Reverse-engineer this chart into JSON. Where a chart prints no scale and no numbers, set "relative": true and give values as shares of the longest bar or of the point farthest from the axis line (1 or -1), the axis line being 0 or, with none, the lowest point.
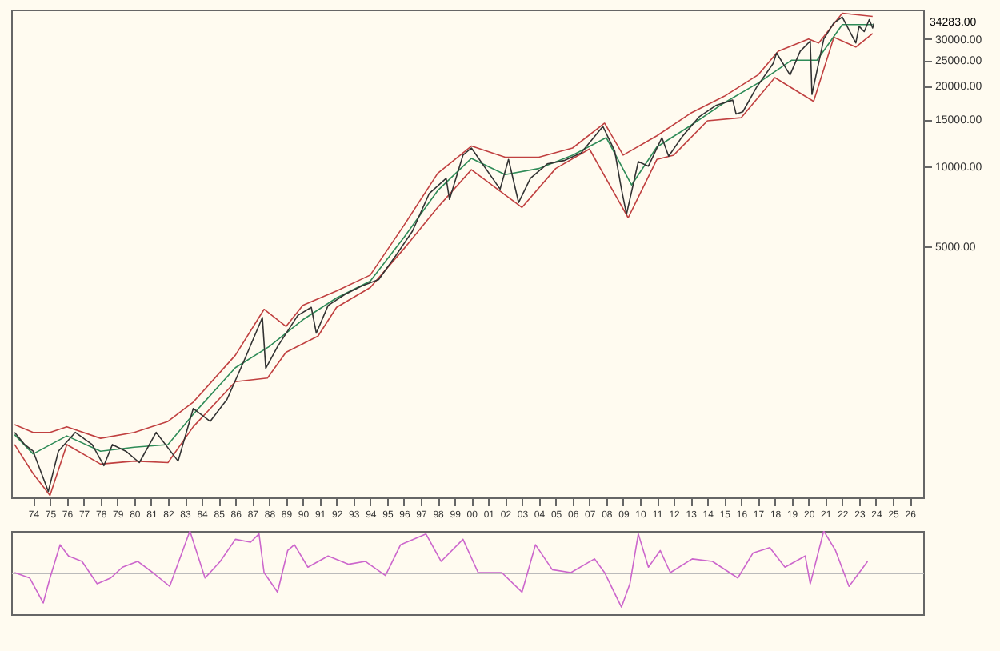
{
  "chart_data": [
    {
      "type": "line",
      "log": "y",
      "xlim": [
        1972.7,
        2026.8
      ],
      "ylim": [
        570,
        38700
      ],
      "xticks": [
        {
          "value": 1974,
          "label": "74"
        },
        {
          "value": 1975,
          "label": "75"
        },
        {
          "value": 1976,
          "label": "76"
        },
        {
          "value": 1977,
          "label": "77"
        },
        {
          "value": 1978,
          "label": "78"
        },
        {
          "value": 1979,
          "label": "79"
        },
        {
          "value": 1980,
          "label": "80"
        },
        {
          "value": 1981,
          "label": "81"
        },
        {
          "value": 1982,
          "label": "82"
        },
        {
          "value": 1983,
          "label": "83"
        },
        {
          "value": 1984,
          "label": "84"
        },
        {
          "value": 1985,
          "label": "85"
        },
        {
          "value": 1986,
          "label": "86"
        },
        {
          "value": 1987,
          "label": "87"
        },
        {
          "value": 1988,
          "label": "88"
        },
        {
          "value": 1989,
          "label": "89"
        },
        {
          "value": 1990,
          "label": "90"
        },
        {
          "value": 1991,
          "label": "91"
        },
        {
          "value": 1992,
          "label": "92"
        },
        {
          "value": 1993,
          "label": "93"
        },
        {
          "value": 1994,
          "label": "94"
        },
        {
          "value": 1995,
          "label": "95"
        },
        {
          "value": 1996,
          "label": "96"
        },
        {
          "value": 1997,
          "label": "97"
        },
        {
          "value": 1998,
          "label": "98"
        },
        {
          "value": 1999,
          "label": "99"
        },
        {
          "value": 2000,
          "label": "00"
        },
        {
          "value": 2001,
          "label": "01"
        },
        {
          "value": 2002,
          "label": "02"
        },
        {
          "value": 2003,
          "label": "03"
        },
        {
          "value": 2004,
          "label": "04"
        },
        {
          "value": 2005,
          "label": "05"
        },
        {
          "value": 2006,
          "label": "06"
        },
        {
          "value": 2007,
          "label": "07"
        },
        {
          "value": 2008,
          "label": "08"
        },
        {
          "value": 2009,
          "label": "09"
        },
        {
          "value": 2010,
          "label": "10"
        },
        {
          "value": 2011,
          "label": "11"
        },
        {
          "value": 2012,
          "label": "12"
        },
        {
          "value": 2013,
          "label": "13"
        },
        {
          "value": 2014,
          "label": "14"
        },
        {
          "value": 2015,
          "label": "15"
        },
        {
          "value": 2016,
          "label": "16"
        },
        {
          "value": 2017,
          "label": "17"
        },
        {
          "value": 2018,
          "label": "18"
        },
        {
          "value": 2019,
          "label": "19"
        },
        {
          "value": 2020,
          "label": "20"
        },
        {
          "value": 2021,
          "label": "21"
        },
        {
          "value": 2022,
          "label": "22"
        },
        {
          "value": 2023,
          "label": "23"
        },
        {
          "value": 2024,
          "label": "24"
        },
        {
          "value": 2025,
          "label": "25"
        },
        {
          "value": 2026,
          "label": "26"
        }
      ],
      "yticks": [
        {
          "value": 5000,
          "label": "5000.00"
        },
        {
          "value": 10000,
          "label": "10000.00"
        },
        {
          "value": 15000,
          "label": "15000.00"
        },
        {
          "value": 20000,
          "label": "20000.00"
        },
        {
          "value": 25000,
          "label": "25000.00"
        },
        {
          "value": 30000,
          "label": "30000.00"
        }
      ],
      "series": [
        {
          "color": "#c04040",
          "x": [
            1972.9,
            1974,
            1975,
            1976,
            1978,
            1980,
            1982,
            1983.5,
            1986,
            1987.7,
            1989,
            1990,
            1992,
            1994,
            1996,
            1998,
            2000,
            2002,
            2004,
            2006,
            2007.9,
            2009,
            2011,
            2013,
            2015,
            2017,
            2018.2,
            2020,
            2020.6,
            2022,
            2023.8
          ],
          "values": [
            1070,
            1000,
            1000,
            1050,
            950,
            1000,
            1100,
            1300,
            1950,
            2900,
            2500,
            3000,
            3400,
            3900,
            6000,
            9400,
            11900,
            10800,
            10800,
            11700,
            14500,
            11000,
            13000,
            15800,
            18300,
            22000,
            27000,
            30000,
            29000,
            37500,
            36500
          ]
        },
        {
          "color": "#c04040",
          "x": [
            1972.9,
            1974,
            1975,
            1976,
            1978,
            1980,
            1982,
            1983.5,
            1986,
            1987.9,
            1989,
            1990.9,
            1992,
            1994,
            1996,
            1998,
            2000,
            2002,
            2003,
            2005,
            2007,
            2009.3,
            2011,
            2012,
            2014,
            2016,
            2018,
            2020.3,
            2021.5,
            2022.8,
            2023.8
          ],
          "values": [
            900,
            700,
            580,
            900,
            760,
            780,
            770,
            1050,
            1550,
            1600,
            2000,
            2300,
            2950,
            3500,
            4900,
            7000,
            9700,
            7800,
            7000,
            9800,
            11600,
            6400,
            10600,
            11000,
            14800,
            15200,
            21500,
            17500,
            30500,
            28000,
            31500
          ]
        },
        {
          "color": "#2e8b57",
          "x": [
            1972.9,
            1974,
            1976,
            1978,
            1980,
            1982,
            1983.5,
            1986,
            1988,
            1990,
            1992,
            1994,
            1996,
            1998,
            2000,
            2002,
            2004,
            2006,
            2008,
            2009.5,
            2011,
            2013,
            2015,
            2017,
            2019,
            2020.5,
            2022,
            2023.8
          ],
          "values": [
            980,
            830,
            970,
            850,
            880,
            900,
            1170,
            1750,
            2100,
            2650,
            3200,
            3700,
            5400,
            8100,
            10700,
            9300,
            9800,
            11000,
            12800,
            8500,
            11800,
            14200,
            17300,
            20500,
            25000,
            25000,
            34000,
            34000
          ]
        },
        {
          "color": "#333333",
          "x": [
            1972.9,
            1973.5,
            1974,
            1974.9,
            1975.5,
            1976.5,
            1977.5,
            1978.2,
            1978.7,
            1979.5,
            1980.3,
            1981.3,
            1982.6,
            1983.5,
            1984.5,
            1985.5,
            1986.5,
            1987.6,
            1987.8,
            1988.5,
            1989.7,
            1990.5,
            1990.8,
            1991.5,
            1992.5,
            1993.5,
            1994.5,
            1995.5,
            1996.5,
            1997.5,
            1998.5,
            1998.7,
            1999.5,
            2000,
            2001.7,
            2002.2,
            2002.8,
            2003.5,
            2004.5,
            2005.5,
            2006.5,
            2007.8,
            2008.5,
            2008.9,
            2009.2,
            2009.9,
            2010.5,
            2011.3,
            2011.7,
            2012.5,
            2013.5,
            2014.5,
            2015.5,
            2015.7,
            2016.1,
            2016.9,
            2017.9,
            2018.1,
            2018.9,
            2019.5,
            2020.1,
            2020.2,
            2020.9,
            2021.5,
            2022,
            2022.8,
            2023,
            2023.3,
            2023.6,
            2023.8,
            2023.87
          ],
          "values": [
            1000,
            900,
            850,
            600,
            850,
            1000,
            900,
            750,
            900,
            850,
            770,
            1000,
            780,
            1230,
            1100,
            1330,
            1850,
            2700,
            1740,
            2100,
            2750,
            2950,
            2360,
            3000,
            3300,
            3550,
            3750,
            4600,
            5700,
            7900,
            9000,
            7500,
            11000,
            11700,
            8200,
            10600,
            7300,
            9000,
            10200,
            10500,
            11200,
            14100,
            11400,
            8200,
            6600,
            10400,
            10000,
            12800,
            10900,
            12900,
            15300,
            16900,
            17700,
            15700,
            16000,
            19700,
            24300,
            26600,
            22000,
            27000,
            29500,
            18600,
            30000,
            34500,
            36300,
            29000,
            33500,
            32000,
            35500,
            33000,
            34283
          ]
        }
      ],
      "annotations": [
        "34283.00"
      ]
    },
    {
      "type": "line",
      "relative": true,
      "xlim": [
        1972.7,
        2026.8
      ],
      "tick_labels": false,
      "series": [
        {
          "color": "#cc66cc",
          "x": [
            1972.9,
            1973.8,
            1974.6,
            1975,
            1975.6,
            1976.1,
            1976.9,
            1977.8,
            1978.6,
            1979.3,
            1980.2,
            1981.1,
            1982.1,
            1983.3,
            1984.2,
            1985.1,
            1986,
            1986.9,
            1987.4,
            1987.7,
            1988.5,
            1989.1,
            1989.5,
            1990.3,
            1991.5,
            1992.7,
            1993.7,
            1994.9,
            1995.8,
            1997.3,
            1998.2,
            1999.5,
            2000.4,
            2001.8,
            2003,
            2003.8,
            2004.8,
            2005.9,
            2007.3,
            2007.9,
            2008.9,
            2009.4,
            2009.9,
            2010.5,
            2011.2,
            2011.8,
            2013.1,
            2014.3,
            2015.8,
            2016.7,
            2017.7,
            2018.6,
            2019.8,
            2020.1,
            2020.9,
            2021.6,
            2022.4,
            2023.5
          ],
          "values": [
            0,
            -0.13,
            -0.73,
            -0.13,
            0.67,
            0.4,
            0.27,
            -0.27,
            -0.13,
            0.13,
            0.27,
            0,
            -0.33,
            1,
            -0.13,
            0.27,
            0.8,
            0.73,
            0.93,
            0,
            -0.47,
            0.53,
            0.67,
            0.13,
            0.4,
            0.2,
            0.27,
            -0.07,
            0.67,
            0.93,
            0.27,
            0.8,
            0,
            0,
            -0.47,
            0.67,
            0.07,
            0,
            0.33,
            0,
            -0.83,
            -0.27,
            0.93,
            0.13,
            0.53,
            0,
            0.33,
            0.27,
            -0.13,
            0.47,
            0.6,
            0.13,
            0.4,
            -0.27,
            1,
            0.53,
            -0.33,
            0.27
          ]
        }
      ]
    }
  ]
}
